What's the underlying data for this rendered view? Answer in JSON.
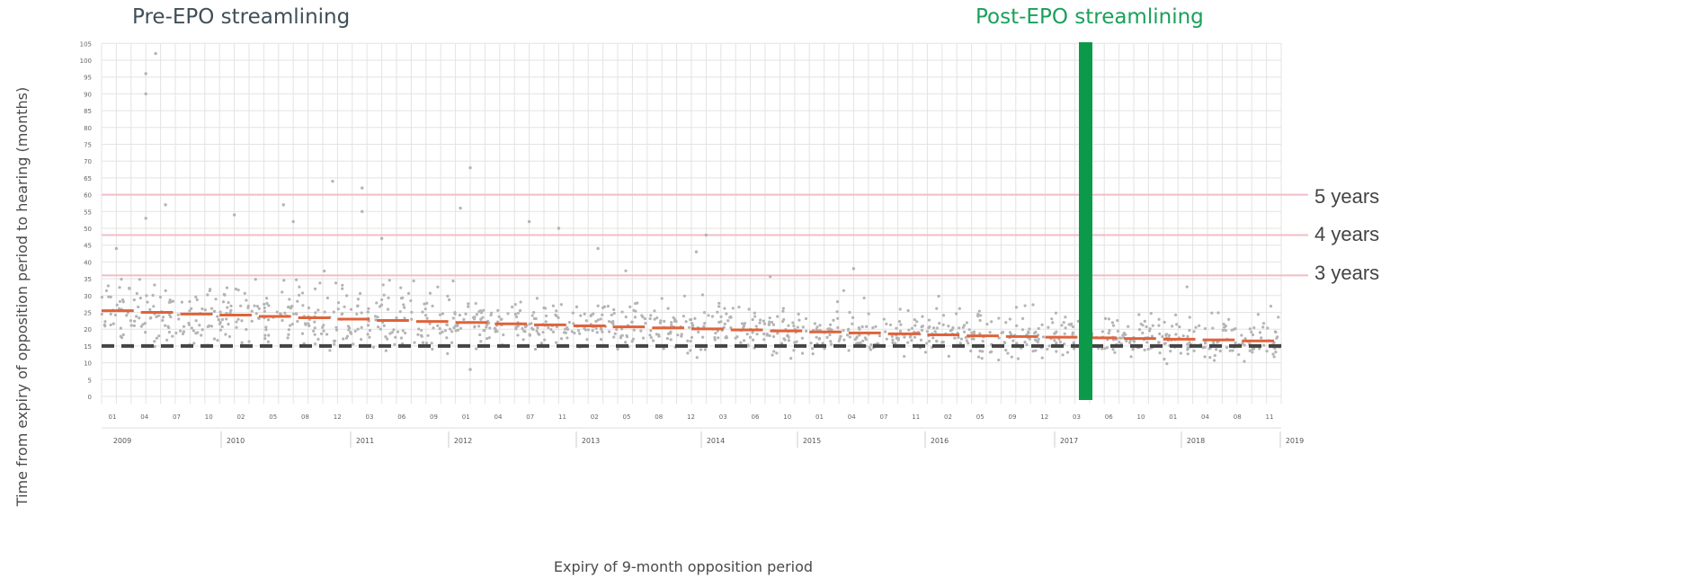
{
  "annotations": {
    "pre_label": "Pre-EPO streamlining",
    "post_label": "Post-EPO streamlining"
  },
  "axes": {
    "ylabel": "Time from expiry of opposition period to hearing (months)",
    "xlabel": "Expiry of 9-month opposition period"
  },
  "thresholds": [
    {
      "label": "5 years",
      "value": 60
    },
    {
      "label": "4 years",
      "value": 48
    },
    {
      "label": "3 years",
      "value": 36
    }
  ],
  "colors": {
    "scatter": "#b4b4b4",
    "median": "#e0623a",
    "dashed": "#444444",
    "threshold": "#f2bcc8",
    "streamline_bar": "#0a9a4a",
    "grid": "#e3e3e3"
  },
  "chart_data": {
    "type": "scatter",
    "title": "",
    "ylabel": "Time from expiry of opposition period to hearing (months)",
    "xlabel": "Expiry of 9-month opposition period",
    "ylim": [
      0,
      105
    ],
    "yticks": [
      0,
      5,
      10,
      15,
      20,
      25,
      30,
      35,
      40,
      45,
      50,
      55,
      60,
      65,
      70,
      75,
      80,
      85,
      90,
      95,
      100,
      105
    ],
    "x_start": "2009-01",
    "x_end": "2019-01",
    "month_ticks": [
      "01",
      "04",
      "07",
      "10",
      "02",
      "05",
      "08",
      "12",
      "03",
      "06",
      "09",
      "01",
      "04",
      "07",
      "11",
      "02",
      "05",
      "08",
      "12",
      "03",
      "06",
      "10",
      "01",
      "04",
      "07",
      "11",
      "02",
      "05",
      "09",
      "12",
      "03",
      "06",
      "10",
      "01",
      "04",
      "08",
      "11"
    ],
    "year_labels": [
      "2009",
      "2010",
      "2011",
      "2012",
      "2013",
      "2014",
      "2015",
      "2016",
      "2017",
      "2018",
      "2019"
    ],
    "reference_line": 15,
    "streamlining_date": "2017-04",
    "medians": [
      {
        "start": "2009-01",
        "end": "2009-04",
        "value": 25.5
      },
      {
        "start": "2009-05",
        "end": "2009-08",
        "value": 25
      },
      {
        "start": "2009-09",
        "end": "2009-12",
        "value": 24.5
      },
      {
        "start": "2010-01",
        "end": "2010-04",
        "value": 24.2
      },
      {
        "start": "2010-05",
        "end": "2010-08",
        "value": 23.8
      },
      {
        "start": "2010-09",
        "end": "2010-12",
        "value": 23.4
      },
      {
        "start": "2011-01",
        "end": "2011-04",
        "value": 23
      },
      {
        "start": "2011-05",
        "end": "2011-08",
        "value": 22.6
      },
      {
        "start": "2011-09",
        "end": "2011-12",
        "value": 22.3
      },
      {
        "start": "2012-01",
        "end": "2012-04",
        "value": 22
      },
      {
        "start": "2012-05",
        "end": "2012-08",
        "value": 21.6
      },
      {
        "start": "2012-09",
        "end": "2012-12",
        "value": 21.3
      },
      {
        "start": "2013-01",
        "end": "2013-04",
        "value": 21
      },
      {
        "start": "2013-05",
        "end": "2013-08",
        "value": 20.7
      },
      {
        "start": "2013-09",
        "end": "2013-12",
        "value": 20.4
      },
      {
        "start": "2014-01",
        "end": "2014-04",
        "value": 20.1
      },
      {
        "start": "2014-05",
        "end": "2014-08",
        "value": 19.8
      },
      {
        "start": "2014-09",
        "end": "2014-12",
        "value": 19.5
      },
      {
        "start": "2015-01",
        "end": "2015-04",
        "value": 19.2
      },
      {
        "start": "2015-05",
        "end": "2015-08",
        "value": 18.9
      },
      {
        "start": "2015-09",
        "end": "2015-12",
        "value": 18.6
      },
      {
        "start": "2016-01",
        "end": "2016-04",
        "value": 18.3
      },
      {
        "start": "2016-05",
        "end": "2016-08",
        "value": 18
      },
      {
        "start": "2016-09",
        "end": "2016-12",
        "value": 17.8
      },
      {
        "start": "2017-01",
        "end": "2017-04",
        "value": 17.6
      },
      {
        "start": "2017-05",
        "end": "2017-08",
        "value": 17.4
      },
      {
        "start": "2017-09",
        "end": "2017-12",
        "value": 17.2
      },
      {
        "start": "2018-01",
        "end": "2018-04",
        "value": 17
      },
      {
        "start": "2018-05",
        "end": "2018-08",
        "value": 16.8
      },
      {
        "start": "2018-09",
        "end": "2018-12",
        "value": 16.5
      }
    ],
    "outliers": [
      {
        "x": "2009-05",
        "y": 96
      },
      {
        "x": "2009-05",
        "y": 90
      },
      {
        "x": "2009-06",
        "y": 102
      },
      {
        "x": "2009-07",
        "y": 57
      },
      {
        "x": "2009-05",
        "y": 53
      },
      {
        "x": "2009-02",
        "y": 44
      },
      {
        "x": "2010-02",
        "y": 54
      },
      {
        "x": "2010-07",
        "y": 57
      },
      {
        "x": "2010-08",
        "y": 52
      },
      {
        "x": "2010-12",
        "y": 64
      },
      {
        "x": "2011-03",
        "y": 62
      },
      {
        "x": "2011-03",
        "y": 55
      },
      {
        "x": "2011-05",
        "y": 47
      },
      {
        "x": "2012-02",
        "y": 68
      },
      {
        "x": "2012-01",
        "y": 56
      },
      {
        "x": "2012-08",
        "y": 52
      },
      {
        "x": "2012-11",
        "y": 50
      },
      {
        "x": "2013-03",
        "y": 44
      },
      {
        "x": "2014-01",
        "y": 43
      },
      {
        "x": "2014-02",
        "y": 48
      },
      {
        "x": "2015-05",
        "y": 38
      },
      {
        "x": "2012-02",
        "y": 8
      }
    ]
  }
}
